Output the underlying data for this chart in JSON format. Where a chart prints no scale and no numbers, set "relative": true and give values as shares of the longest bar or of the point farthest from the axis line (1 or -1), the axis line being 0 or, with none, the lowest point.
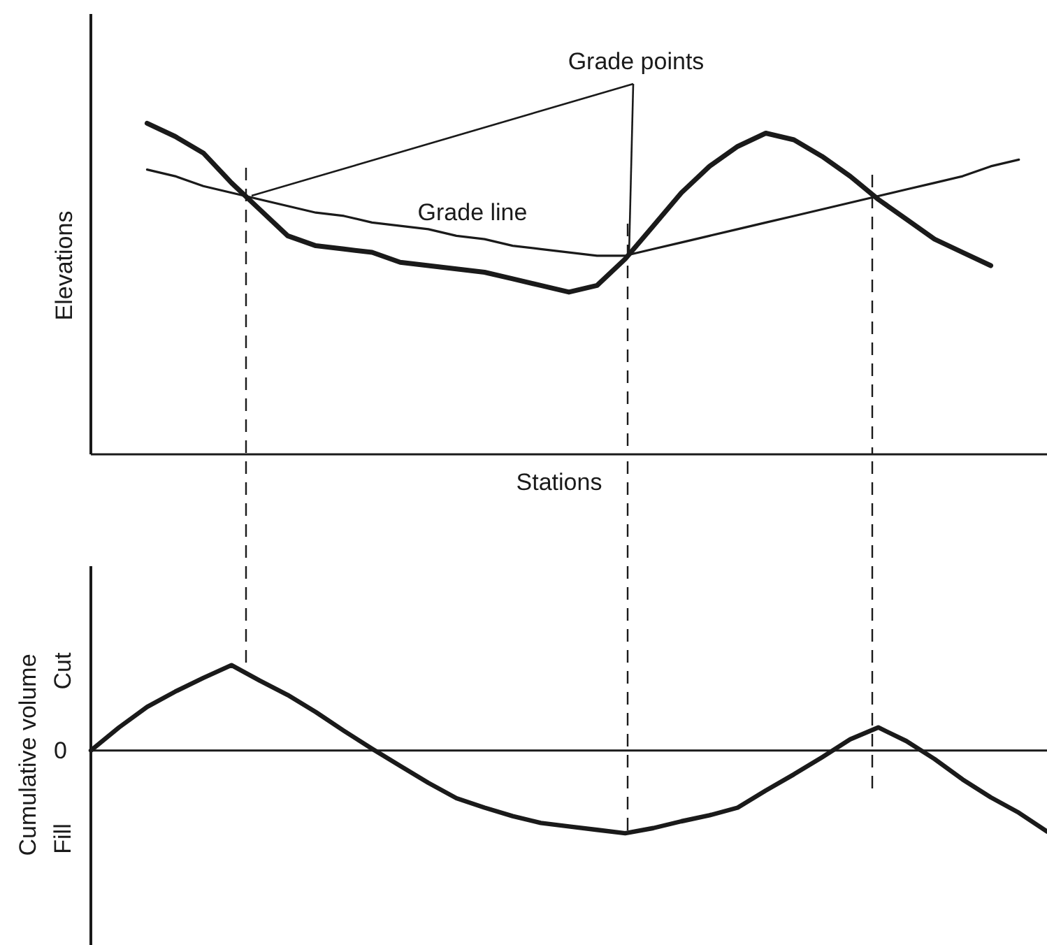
{
  "chart_data": [
    {
      "type": "line",
      "xlabel": "Stations",
      "ylabel": "Elevations",
      "relative": true,
      "marker": "none",
      "categories": [
        null,
        null,
        null,
        null,
        null,
        null,
        null,
        null,
        null,
        null,
        null,
        null,
        null,
        null,
        null,
        null,
        null,
        null,
        null,
        null,
        null,
        null,
        null,
        null,
        null,
        null,
        null,
        null,
        null,
        null,
        null,
        null,
        null,
        null,
        null
      ],
      "series": [
        {
          "color": "#1a1a1a",
          "values": [
            null,
            null,
            1.0,
            0.96,
            0.91,
            0.82,
            0.74,
            0.66,
            0.63,
            0.62,
            0.61,
            0.58,
            0.57,
            0.56,
            0.55,
            0.53,
            0.51,
            0.49,
            0.51,
            0.59,
            0.69,
            0.79,
            0.87,
            0.93,
            0.97,
            0.95,
            0.9,
            0.84,
            0.77,
            0.71,
            0.65,
            0.61,
            0.57,
            null,
            null
          ]
        },
        {
          "color": "#1a1a1a",
          "values": [
            null,
            null,
            0.86,
            0.84,
            0.81,
            0.79,
            0.77,
            0.75,
            0.73,
            0.72,
            0.7,
            0.69,
            0.68,
            0.66,
            0.65,
            0.63,
            0.62,
            0.61,
            0.6,
            0.6,
            0.62,
            0.64,
            0.66,
            0.68,
            0.7,
            0.72,
            0.74,
            0.76,
            0.78,
            0.8,
            0.82,
            0.84,
            0.87,
            0.89,
            null
          ]
        }
      ],
      "annotations": [
        "Grade points",
        "Grade line"
      ]
    },
    {
      "type": "line",
      "ylabel": "Cumulative volume",
      "relative": true,
      "marker": "none",
      "categories": [
        null,
        null,
        null,
        null,
        null,
        null,
        null,
        null,
        null,
        null,
        null,
        null,
        null,
        null,
        null,
        null,
        null,
        null,
        null,
        null,
        null,
        null,
        null,
        null,
        null,
        null,
        null,
        null,
        null,
        null,
        null,
        null,
        null,
        null,
        null
      ],
      "series": [
        {
          "color": "#1a1a1a",
          "values": [
            0,
            0.27,
            0.51,
            0.69,
            0.85,
            1.0,
            0.82,
            0.65,
            0.45,
            0.23,
            0.02,
            -0.18,
            -0.38,
            -0.56,
            -0.67,
            -0.77,
            -0.85,
            -0.89,
            -0.93,
            -0.97,
            -0.91,
            -0.83,
            -0.76,
            -0.67,
            -0.47,
            -0.28,
            -0.08,
            0.13,
            0.27,
            0.11,
            -0.1,
            -0.34,
            -0.55,
            -0.73,
            -0.95
          ]
        }
      ],
      "annotations": [
        "Cut",
        "Fill",
        "0"
      ]
    }
  ]
}
